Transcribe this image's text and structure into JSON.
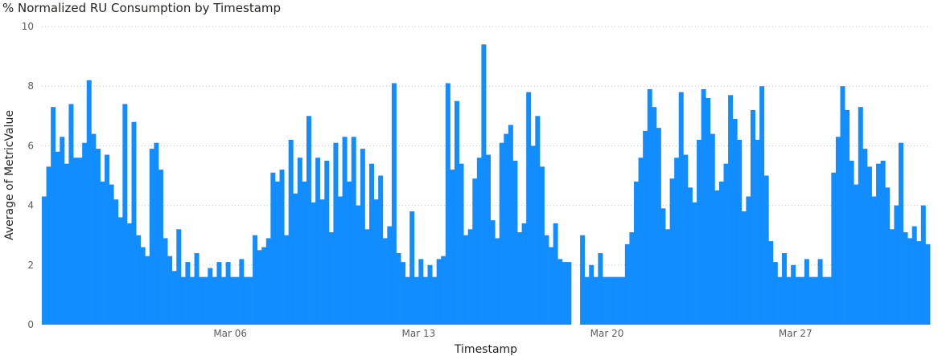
{
  "chart_data": {
    "type": "bar",
    "title": "% Normalized RU Consumption by Timestamp",
    "xlabel": "Timestamp",
    "ylabel": "Average of MetricValue",
    "ylim": [
      0,
      10
    ],
    "y_ticks": [
      "0",
      "2",
      "4",
      "6",
      "8",
      "10"
    ],
    "x_range": [
      "2024-02-28",
      "2024-04-01"
    ],
    "x_ticks": [
      {
        "label": "Mar 06",
        "date": "2024-03-06"
      },
      {
        "label": "Mar 13",
        "date": "2024-03-13"
      },
      {
        "label": "Mar 20",
        "date": "2024-03-20"
      },
      {
        "label": "Mar 27",
        "date": "2024-03-27"
      }
    ],
    "grid": true,
    "bar_color": "#118DFF",
    "series": [
      {
        "points": [
          [
            "2024-02-28 00:00",
            4.3
          ],
          [
            "2024-02-28 04:00",
            5.3
          ],
          [
            "2024-02-28 08:00",
            7.3
          ],
          [
            "2024-02-28 12:00",
            5.8
          ],
          [
            "2024-02-28 16:00",
            6.3
          ],
          [
            "2024-02-28 20:00",
            5.4
          ],
          [
            "2024-02-29 00:00",
            7.4
          ],
          [
            "2024-02-29 04:00",
            5.6
          ],
          [
            "2024-02-29 08:00",
            5.6
          ],
          [
            "2024-02-29 12:00",
            6.1
          ],
          [
            "2024-02-29 16:00",
            8.2
          ],
          [
            "2024-02-29 20:00",
            6.4
          ],
          [
            "2024-03-01 00:00",
            5.9
          ],
          [
            "2024-03-01 04:00",
            4.8
          ],
          [
            "2024-03-01 08:00",
            5.7
          ],
          [
            "2024-03-01 12:00",
            4.7
          ],
          [
            "2024-03-01 16:00",
            4.2
          ],
          [
            "2024-03-01 20:00",
            3.6
          ],
          [
            "2024-03-02 00:00",
            7.4
          ],
          [
            "2024-03-02 04:00",
            3.4
          ],
          [
            "2024-03-02 08:00",
            6.8
          ],
          [
            "2024-03-02 12:00",
            3.0
          ],
          [
            "2024-03-02 16:00",
            2.6
          ],
          [
            "2024-03-02 20:00",
            2.3
          ],
          [
            "2024-03-03 00:00",
            5.9
          ],
          [
            "2024-03-03 04:00",
            6.1
          ],
          [
            "2024-03-03 08:00",
            5.2
          ],
          [
            "2024-03-03 12:00",
            2.9
          ],
          [
            "2024-03-03 16:00",
            2.3
          ],
          [
            "2024-03-03 20:00",
            1.8
          ],
          [
            "2024-03-04 00:00",
            3.2
          ],
          [
            "2024-03-04 04:00",
            1.6
          ],
          [
            "2024-03-04 08:00",
            2.1
          ],
          [
            "2024-03-04 12:00",
            1.6
          ],
          [
            "2024-03-04 16:00",
            2.4
          ],
          [
            "2024-03-04 20:00",
            1.6
          ],
          [
            "2024-03-05 00:00",
            1.6
          ],
          [
            "2024-03-05 04:00",
            1.9
          ],
          [
            "2024-03-05 08:00",
            1.6
          ],
          [
            "2024-03-05 12:00",
            2.1
          ],
          [
            "2024-03-05 16:00",
            1.6
          ],
          [
            "2024-03-05 20:00",
            2.1
          ],
          [
            "2024-03-06 00:00",
            1.6
          ],
          [
            "2024-03-06 04:00",
            1.6
          ],
          [
            "2024-03-06 08:00",
            2.2
          ],
          [
            "2024-03-06 12:00",
            1.6
          ],
          [
            "2024-03-06 16:00",
            1.6
          ],
          [
            "2024-03-06 20:00",
            3.0
          ],
          [
            "2024-03-07 00:00",
            2.5
          ],
          [
            "2024-03-07 04:00",
            2.6
          ],
          [
            "2024-03-07 08:00",
            2.9
          ],
          [
            "2024-03-07 12:00",
            5.1
          ],
          [
            "2024-03-07 16:00",
            4.8
          ],
          [
            "2024-03-07 20:00",
            5.2
          ],
          [
            "2024-03-08 00:00",
            3.0
          ],
          [
            "2024-03-08 04:00",
            6.2
          ],
          [
            "2024-03-08 08:00",
            4.4
          ],
          [
            "2024-03-08 12:00",
            5.6
          ],
          [
            "2024-03-08 16:00",
            4.8
          ],
          [
            "2024-03-08 20:00",
            7.0
          ],
          [
            "2024-03-09 00:00",
            4.1
          ],
          [
            "2024-03-09 04:00",
            5.6
          ],
          [
            "2024-03-09 08:00",
            4.2
          ],
          [
            "2024-03-09 12:00",
            5.5
          ],
          [
            "2024-03-09 16:00",
            3.1
          ],
          [
            "2024-03-09 20:00",
            6.1
          ],
          [
            "2024-03-10 00:00",
            4.3
          ],
          [
            "2024-03-10 04:00",
            6.3
          ],
          [
            "2024-03-10 08:00",
            4.8
          ],
          [
            "2024-03-10 12:00",
            6.3
          ],
          [
            "2024-03-10 16:00",
            4.0
          ],
          [
            "2024-03-10 20:00",
            5.9
          ],
          [
            "2024-03-11 00:00",
            3.2
          ],
          [
            "2024-03-11 04:00",
            5.4
          ],
          [
            "2024-03-11 08:00",
            4.2
          ],
          [
            "2024-03-11 12:00",
            5.0
          ],
          [
            "2024-03-11 16:00",
            2.9
          ],
          [
            "2024-03-11 20:00",
            3.3
          ],
          [
            "2024-03-12 00:00",
            8.1
          ],
          [
            "2024-03-12 04:00",
            2.4
          ],
          [
            "2024-03-12 08:00",
            2.1
          ],
          [
            "2024-03-12 12:00",
            1.6
          ],
          [
            "2024-03-12 16:00",
            3.8
          ],
          [
            "2024-03-12 20:00",
            1.6
          ],
          [
            "2024-03-13 00:00",
            2.2
          ],
          [
            "2024-03-13 04:00",
            1.6
          ],
          [
            "2024-03-13 08:00",
            2.0
          ],
          [
            "2024-03-13 12:00",
            1.6
          ],
          [
            "2024-03-13 16:00",
            2.2
          ],
          [
            "2024-03-13 20:00",
            2.3
          ],
          [
            "2024-03-14 00:00",
            8.1
          ],
          [
            "2024-03-14 04:00",
            5.2
          ],
          [
            "2024-03-14 08:00",
            7.5
          ],
          [
            "2024-03-14 12:00",
            5.4
          ],
          [
            "2024-03-14 16:00",
            3.0
          ],
          [
            "2024-03-14 20:00",
            3.2
          ],
          [
            "2024-03-15 00:00",
            4.9
          ],
          [
            "2024-03-15 04:00",
            5.6
          ],
          [
            "2024-03-15 08:00",
            9.4
          ],
          [
            "2024-03-15 12:00",
            5.7
          ],
          [
            "2024-03-15 16:00",
            3.5
          ],
          [
            "2024-03-15 20:00",
            2.9
          ],
          [
            "2024-03-16 00:00",
            6.1
          ],
          [
            "2024-03-16 04:00",
            6.4
          ],
          [
            "2024-03-16 08:00",
            6.7
          ],
          [
            "2024-03-16 12:00",
            5.5
          ],
          [
            "2024-03-16 16:00",
            3.1
          ],
          [
            "2024-03-16 20:00",
            3.4
          ],
          [
            "2024-03-17 00:00",
            7.8
          ],
          [
            "2024-03-17 04:00",
            6.0
          ],
          [
            "2024-03-17 08:00",
            7.0
          ],
          [
            "2024-03-17 12:00",
            5.3
          ],
          [
            "2024-03-17 16:00",
            3.0
          ],
          [
            "2024-03-17 20:00",
            2.6
          ],
          [
            "2024-03-18 00:00",
            3.4
          ],
          [
            "2024-03-18 04:00",
            2.2
          ],
          [
            "2024-03-18 08:00",
            2.1
          ],
          [
            "2024-03-18 12:00",
            2.1
          ],
          [
            "2024-03-18 16:00",
            0
          ],
          [
            "2024-03-18 20:00",
            0
          ],
          [
            "2024-03-19 00:00",
            3.0
          ],
          [
            "2024-03-19 04:00",
            1.6
          ],
          [
            "2024-03-19 08:00",
            2.0
          ],
          [
            "2024-03-19 12:00",
            1.6
          ],
          [
            "2024-03-19 16:00",
            2.4
          ],
          [
            "2024-03-19 20:00",
            1.6
          ],
          [
            "2024-03-20 00:00",
            1.6
          ],
          [
            "2024-03-20 04:00",
            1.6
          ],
          [
            "2024-03-20 08:00",
            1.6
          ],
          [
            "2024-03-20 12:00",
            1.6
          ],
          [
            "2024-03-20 16:00",
            2.7
          ],
          [
            "2024-03-20 20:00",
            3.1
          ],
          [
            "2024-03-21 00:00",
            4.8
          ],
          [
            "2024-03-21 04:00",
            5.6
          ],
          [
            "2024-03-21 08:00",
            6.5
          ],
          [
            "2024-03-21 12:00",
            7.9
          ],
          [
            "2024-03-21 16:00",
            7.3
          ],
          [
            "2024-03-21 20:00",
            6.6
          ],
          [
            "2024-03-22 00:00",
            3.9
          ],
          [
            "2024-03-22 04:00",
            3.2
          ],
          [
            "2024-03-22 08:00",
            4.9
          ],
          [
            "2024-03-22 12:00",
            5.6
          ],
          [
            "2024-03-22 16:00",
            7.8
          ],
          [
            "2024-03-22 20:00",
            5.7
          ],
          [
            "2024-03-23 00:00",
            4.6
          ],
          [
            "2024-03-23 04:00",
            4.1
          ],
          [
            "2024-03-23 08:00",
            6.2
          ],
          [
            "2024-03-23 12:00",
            7.9
          ],
          [
            "2024-03-23 16:00",
            7.6
          ],
          [
            "2024-03-23 20:00",
            6.4
          ],
          [
            "2024-03-24 00:00",
            4.5
          ],
          [
            "2024-03-24 04:00",
            4.8
          ],
          [
            "2024-03-24 08:00",
            5.4
          ],
          [
            "2024-03-24 12:00",
            7.7
          ],
          [
            "2024-03-24 16:00",
            6.9
          ],
          [
            "2024-03-24 20:00",
            6.2
          ],
          [
            "2024-03-25 00:00",
            3.8
          ],
          [
            "2024-03-25 04:00",
            4.3
          ],
          [
            "2024-03-25 08:00",
            7.2
          ],
          [
            "2024-03-25 12:00",
            6.2
          ],
          [
            "2024-03-25 16:00",
            8.0
          ],
          [
            "2024-03-25 20:00",
            5.0
          ],
          [
            "2024-03-26 00:00",
            2.8
          ],
          [
            "2024-03-26 04:00",
            2.1
          ],
          [
            "2024-03-26 08:00",
            1.6
          ],
          [
            "2024-03-26 12:00",
            2.4
          ],
          [
            "2024-03-26 16:00",
            1.6
          ],
          [
            "2024-03-26 20:00",
            2.0
          ],
          [
            "2024-03-27 00:00",
            1.6
          ],
          [
            "2024-03-27 04:00",
            1.6
          ],
          [
            "2024-03-27 08:00",
            2.2
          ],
          [
            "2024-03-27 12:00",
            1.6
          ],
          [
            "2024-03-27 16:00",
            1.6
          ],
          [
            "2024-03-27 20:00",
            2.2
          ],
          [
            "2024-03-28 00:00",
            1.6
          ],
          [
            "2024-03-28 04:00",
            1.6
          ],
          [
            "2024-03-28 08:00",
            5.1
          ],
          [
            "2024-03-28 12:00",
            6.3
          ],
          [
            "2024-03-28 16:00",
            8.0
          ],
          [
            "2024-03-28 20:00",
            7.2
          ],
          [
            "2024-03-29 00:00",
            5.5
          ],
          [
            "2024-03-29 04:00",
            4.7
          ],
          [
            "2024-03-29 08:00",
            7.3
          ],
          [
            "2024-03-29 12:00",
            5.9
          ],
          [
            "2024-03-29 16:00",
            5.3
          ],
          [
            "2024-03-29 20:00",
            4.3
          ],
          [
            "2024-03-30 00:00",
            5.4
          ],
          [
            "2024-03-30 04:00",
            5.5
          ],
          [
            "2024-03-30 08:00",
            4.6
          ],
          [
            "2024-03-30 12:00",
            3.2
          ],
          [
            "2024-03-30 16:00",
            4.0
          ],
          [
            "2024-03-30 20:00",
            6.1
          ],
          [
            "2024-03-31 00:00",
            3.1
          ],
          [
            "2024-03-31 04:00",
            2.9
          ],
          [
            "2024-03-31 08:00",
            3.3
          ],
          [
            "2024-03-31 12:00",
            2.8
          ],
          [
            "2024-03-31 16:00",
            4.0
          ],
          [
            "2024-03-31 20:00",
            2.7
          ]
        ]
      }
    ]
  }
}
